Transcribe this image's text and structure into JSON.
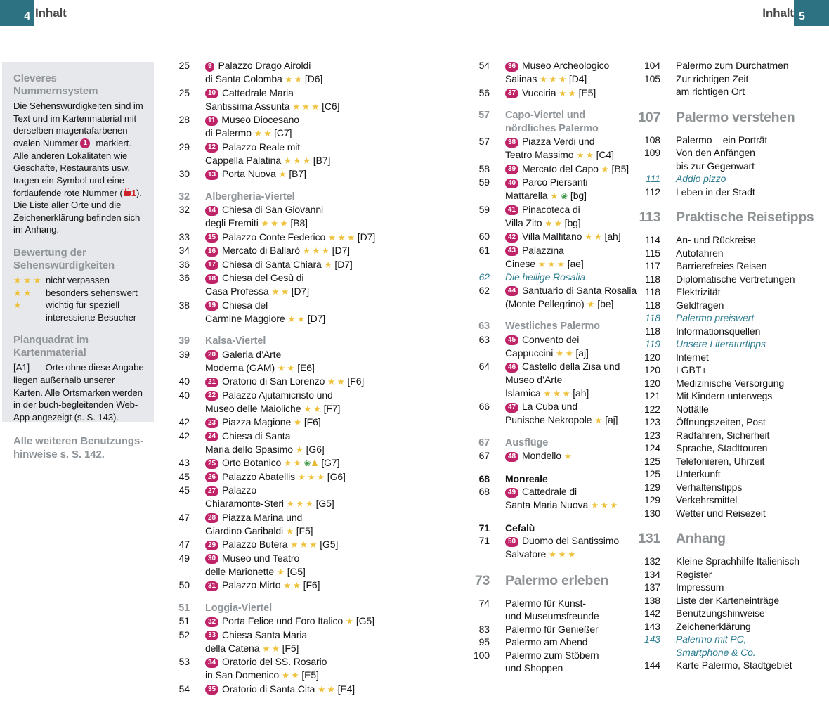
{
  "page": {
    "left_page_number": "4",
    "right_page_number": "5",
    "left_header": "Inhalt",
    "right_header": "Inhalt"
  },
  "colors": {
    "accent_teal": "#2c7282",
    "badge_magenta": "#bf2468",
    "star_yellow": "#eec23d",
    "heading_gray": "#8f9498",
    "essay_teal": "#2e7d91",
    "symbol_red": "#cc2328",
    "sidebar_bg": "#e7e8eb"
  },
  "sidebar": {
    "sections": [
      {
        "type": "text",
        "heading": "Cleveres Nummernsystem",
        "body": "Die Sehenswürdigkeiten sind im Text und im Kartenmaterial mit derselben magentafarbenen ovalen Nummer {badge:1} markiert. Alle anderen Lokalitäten wie Geschäfte, Restaurants usw. tragen ein Symbol und eine fortlaufende rote Nummer ({bag}{red:1}). Die Liste aller Orte und die Zeichenerklärung befinden sich im Anhang."
      },
      {
        "type": "ratings",
        "heading_lines": [
          "Bewertung der",
          "Sehenswürdigkeiten"
        ],
        "items": [
          {
            "stars": 3,
            "label": "nicht verpassen"
          },
          {
            "stars": 2,
            "label": "besonders sehenswert"
          },
          {
            "stars": 1,
            "label": "wichtig für speziell interessierte Besucher"
          }
        ]
      },
      {
        "type": "text",
        "heading": "Planquadrat im Kartenmaterial",
        "body": "{code:[A1]} Orte ohne diese Angabe liegen außerhalb unserer Karten. Alle Ortsmarken werden in der buch-begleitenden Web-App angezeigt (s. S. 143)."
      },
      {
        "type": "note",
        "lines": [
          "Alle weiteren Benutzungs-",
          "hinweise s. S. 142."
        ]
      }
    ]
  },
  "columns": [
    {
      "items": [
        {
          "page": "25",
          "badge": "9",
          "style": "entry",
          "lines": [
            "Palazzo Drago Airoldi",
            "di Santa Colomba ** [D6]"
          ]
        },
        {
          "page": "25",
          "badge": "10",
          "style": "entry",
          "lines": [
            "Cattedrale Maria",
            "Santissima Assunta *** [C6]"
          ]
        },
        {
          "page": "28",
          "badge": "11",
          "style": "entry",
          "lines": [
            "Museo Diocesano",
            "di Palermo ** [C7]"
          ]
        },
        {
          "page": "29",
          "badge": "12",
          "style": "entry",
          "lines": [
            "Palazzo Reale mit",
            "Cappella Palatina *** [B7]"
          ]
        },
        {
          "page": "30",
          "badge": "13",
          "style": "entry",
          "lines": [
            "Porta Nuova * [B7]"
          ]
        },
        {
          "page": "32",
          "style": "section",
          "lines": [
            "Albergheria-Viertel"
          ]
        },
        {
          "page": "32",
          "badge": "14",
          "style": "entry",
          "lines": [
            "Chiesa di San Giovanni",
            "degli Eremiti *** [B8]"
          ]
        },
        {
          "page": "33",
          "badge": "15",
          "style": "entry",
          "lines": [
            "Palazzo Conte Federico *** [D7]"
          ]
        },
        {
          "page": "34",
          "badge": "16",
          "style": "entry",
          "lines": [
            "Mercato di Ballarò *** [D7]"
          ]
        },
        {
          "page": "36",
          "badge": "17",
          "style": "entry",
          "lines": [
            "Chiesa di Santa Chiara * [D7]"
          ]
        },
        {
          "page": "36",
          "badge": "18",
          "style": "entry",
          "lines": [
            "Chiesa del Gesù di",
            "Casa Professa ** [D7]"
          ]
        },
        {
          "page": "38",
          "badge": "19",
          "style": "entry",
          "lines": [
            "Chiesa del",
            "Carmine Maggiore ** [D7]"
          ]
        },
        {
          "page": "39",
          "style": "section",
          "lines": [
            "Kalsa-Viertel"
          ]
        },
        {
          "page": "39",
          "badge": "20",
          "style": "entry",
          "lines": [
            "Galeria d’Arte",
            "Moderna (GAM) ** [E6]"
          ]
        },
        {
          "page": "40",
          "badge": "21",
          "style": "entry",
          "lines": [
            "Oratorio di San Lorenzo ** [F6]"
          ]
        },
        {
          "page": "40",
          "badge": "22",
          "style": "entry",
          "lines": [
            "Palazzo Ajutamicristo und",
            "Museo delle Maioliche ** [F7]"
          ]
        },
        {
          "page": "42",
          "badge": "23",
          "style": "entry",
          "lines": [
            "Piazza Magione * [F6]"
          ]
        },
        {
          "page": "42",
          "badge": "24",
          "style": "entry",
          "lines": [
            "Chiesa di Santa",
            "Maria dello Spasimo * [G6]"
          ]
        },
        {
          "page": "43",
          "badge": "25",
          "style": "entry",
          "lines": [
            "Orto Botanico ** {b}{p} [G7]"
          ]
        },
        {
          "page": "45",
          "badge": "26",
          "style": "entry",
          "lines": [
            "Palazzo Abatellis *** [G6]"
          ]
        },
        {
          "page": "45",
          "badge": "27",
          "style": "entry",
          "lines": [
            "Palazzo",
            "Chiaramonte-Steri *** [G5]"
          ]
        },
        {
          "page": "47",
          "badge": "28",
          "style": "entry",
          "lines": [
            "Piazza Marina und",
            "Giardino Garibaldi * [F5]"
          ]
        },
        {
          "page": "47",
          "badge": "29",
          "style": "entry",
          "lines": [
            "Palazzo Butera *** [G5]"
          ]
        },
        {
          "page": "49",
          "badge": "30",
          "style": "entry",
          "lines": [
            "Museo und Teatro",
            "delle Marionette * [G5]"
          ]
        },
        {
          "page": "50",
          "badge": "31",
          "style": "entry",
          "lines": [
            "Palazzo Mirto ** [F6]"
          ]
        },
        {
          "page": "51",
          "style": "section",
          "lines": [
            "Loggia-Viertel"
          ]
        },
        {
          "page": "51",
          "badge": "32",
          "style": "entry",
          "lines": [
            "Porta Felice und Foro Italico * [G5]"
          ]
        },
        {
          "page": "52",
          "badge": "33",
          "style": "entry",
          "lines": [
            "Chiesa Santa Maria",
            "della Catena ** [F5]"
          ]
        },
        {
          "page": "53",
          "badge": "34",
          "style": "entry",
          "lines": [
            "Oratorio del SS. Rosario",
            "in San Domenico ** [E5]"
          ]
        },
        {
          "page": "54",
          "badge": "35",
          "style": "entry",
          "lines": [
            "Oratorio di Santa Cita ** [E4]"
          ]
        }
      ]
    },
    {
      "items": [
        {
          "page": "54",
          "badge": "36",
          "style": "entry",
          "lines": [
            "Museo Archeologico",
            "Salinas *** [D4]"
          ]
        },
        {
          "page": "56",
          "badge": "37",
          "style": "entry",
          "lines": [
            "Vucciria ** [E5]"
          ]
        },
        {
          "page": "57",
          "style": "section",
          "lines": [
            "Capo-Viertel und",
            "nördliches Palermo"
          ]
        },
        {
          "page": "57",
          "badge": "38",
          "style": "entry",
          "lines": [
            "Piazza Verdi und",
            "Teatro Massimo ** [C4]"
          ]
        },
        {
          "page": "58",
          "badge": "39",
          "style": "entry",
          "lines": [
            "Mercato del Capo * [B5]"
          ]
        },
        {
          "page": "59",
          "badge": "40",
          "style": "entry",
          "lines": [
            "Parco Piersanti",
            "Mattarella * {b} [bg]"
          ]
        },
        {
          "page": "59",
          "badge": "41",
          "style": "entry",
          "lines": [
            "Pinacoteca di",
            "Villa Zito ** [bg]"
          ]
        },
        {
          "page": "60",
          "badge": "42",
          "style": "entry",
          "lines": [
            "Villa Malfitano ** [ah]"
          ]
        },
        {
          "page": "61",
          "badge": "43",
          "style": "entry",
          "lines": [
            "Palazzina",
            "Cinese *** [ae]"
          ]
        },
        {
          "page": "62",
          "style": "italic",
          "lines": [
            "Die heilige Rosalia"
          ]
        },
        {
          "page": "62",
          "badge": "44",
          "style": "entry",
          "lines": [
            "Santuario di Santa Rosalia",
            "(Monte Pellegrino) * [be]"
          ]
        },
        {
          "page": "63",
          "style": "section",
          "lines": [
            "Westliches Palermo"
          ]
        },
        {
          "page": "63",
          "badge": "45",
          "style": "entry",
          "lines": [
            "Convento dei",
            "Cappuccini ** [aj]"
          ]
        },
        {
          "page": "64",
          "badge": "46",
          "style": "entry",
          "lines": [
            "Castello della Zisa und",
            "Museo d’Arte",
            "Islamica *** [ah]"
          ]
        },
        {
          "page": "66",
          "badge": "47",
          "style": "entry",
          "lines": [
            "La Cuba und",
            "Punische Nekropole * [aj]"
          ]
        },
        {
          "page": "67",
          "style": "section",
          "lines": [
            "Ausflüge"
          ]
        },
        {
          "page": "67",
          "badge": "48",
          "style": "entry",
          "lines": [
            "Mondello *"
          ]
        },
        {
          "page": "68",
          "style": "bold",
          "lines": [
            "Monreale"
          ]
        },
        {
          "page": "68",
          "badge": "49",
          "style": "entry",
          "lines": [
            "Cattedrale di",
            "Santa Maria Nuova ***"
          ]
        },
        {
          "page": "71",
          "style": "bold",
          "lines": [
            "Cefalù"
          ]
        },
        {
          "page": "71",
          "badge": "50",
          "style": "entry",
          "lines": [
            "Duomo del Santissimo",
            "Salvatore ***"
          ]
        },
        {
          "page": "73",
          "style": "chapter",
          "lines": [
            "Palermo erleben"
          ]
        },
        {
          "page": "74",
          "style": "entry",
          "lines": [
            "Palermo für Kunst-",
            "und Museumsfreunde"
          ]
        },
        {
          "page": "83",
          "style": "entry",
          "lines": [
            "Palermo für Genießer"
          ]
        },
        {
          "page": "95",
          "style": "entry",
          "lines": [
            "Palermo am Abend"
          ]
        },
        {
          "page": "100",
          "style": "entry",
          "lines": [
            "Palermo zum Stöbern",
            "und Shoppen"
          ]
        }
      ]
    },
    {
      "items": [
        {
          "page": "104",
          "style": "entry",
          "lines": [
            "Palermo zum Durchatmen"
          ]
        },
        {
          "page": "105",
          "style": "entry",
          "lines": [
            "Zur richtigen Zeit",
            "am richtigen Ort"
          ]
        },
        {
          "page": "107",
          "style": "chapter",
          "lines": [
            "Palermo verstehen"
          ]
        },
        {
          "page": "108",
          "style": "entry",
          "lines": [
            "Palermo – ein Porträt"
          ]
        },
        {
          "page": "109",
          "style": "entry",
          "lines": [
            "Von den Anfängen",
            "bis zur Gegenwart"
          ]
        },
        {
          "page": "111",
          "style": "italic",
          "lines": [
            "Addio pizzo"
          ]
        },
        {
          "page": "112",
          "style": "entry",
          "lines": [
            "Leben in der Stadt"
          ]
        },
        {
          "page": "113",
          "style": "chapter",
          "lines": [
            "Praktische Reisetipps"
          ]
        },
        {
          "page": "114",
          "style": "entry",
          "lines": [
            "An- und Rückreise"
          ]
        },
        {
          "page": "115",
          "style": "entry",
          "lines": [
            "Autofahren"
          ]
        },
        {
          "page": "117",
          "style": "entry",
          "lines": [
            "Barrierefreies Reisen"
          ]
        },
        {
          "page": "118",
          "style": "entry",
          "lines": [
            "Diplomatische Vertretungen"
          ]
        },
        {
          "page": "118",
          "style": "entry",
          "lines": [
            "Elektrizität"
          ]
        },
        {
          "page": "118",
          "style": "entry",
          "lines": [
            "Geldfragen"
          ]
        },
        {
          "page": "118",
          "style": "italic",
          "lines": [
            "Palermo preiswert"
          ]
        },
        {
          "page": "118",
          "style": "entry",
          "lines": [
            "Informationsquellen"
          ]
        },
        {
          "page": "119",
          "style": "italic",
          "lines": [
            "Unsere Literaturtipps"
          ]
        },
        {
          "page": "120",
          "style": "entry",
          "lines": [
            "Internet"
          ]
        },
        {
          "page": "120",
          "style": "entry",
          "lines": [
            "LGBT+"
          ]
        },
        {
          "page": "120",
          "style": "entry",
          "lines": [
            "Medizinische Versorgung"
          ]
        },
        {
          "page": "121",
          "style": "entry",
          "lines": [
            "Mit Kindern unterwegs"
          ]
        },
        {
          "page": "122",
          "style": "entry",
          "lines": [
            "Notfälle"
          ]
        },
        {
          "page": "123",
          "style": "entry",
          "lines": [
            "Öffnungszeiten, Post"
          ]
        },
        {
          "page": "123",
          "style": "entry",
          "lines": [
            "Radfahren, Sicherheit"
          ]
        },
        {
          "page": "124",
          "style": "entry",
          "lines": [
            "Sprache, Stadttouren"
          ]
        },
        {
          "page": "125",
          "style": "entry",
          "lines": [
            "Telefonieren, Uhrzeit"
          ]
        },
        {
          "page": "125",
          "style": "entry",
          "lines": [
            "Unterkunft"
          ]
        },
        {
          "page": "129",
          "style": "entry",
          "lines": [
            "Verhaltenstipps"
          ]
        },
        {
          "page": "129",
          "style": "entry",
          "lines": [
            "Verkehrsmittel"
          ]
        },
        {
          "page": "130",
          "style": "entry",
          "lines": [
            "Wetter und Reisezeit"
          ]
        },
        {
          "page": "131",
          "style": "chapter",
          "lines": [
            "Anhang"
          ]
        },
        {
          "page": "132",
          "style": "entry",
          "lines": [
            "Kleine Sprachhilfe Italienisch"
          ]
        },
        {
          "page": "134",
          "style": "entry",
          "lines": [
            "Register"
          ]
        },
        {
          "page": "137",
          "style": "entry",
          "lines": [
            "Impressum"
          ]
        },
        {
          "page": "138",
          "style": "entry",
          "lines": [
            "Liste der Karteneinträge"
          ]
        },
        {
          "page": "142",
          "style": "entry",
          "lines": [
            "Benutzungshinweise"
          ]
        },
        {
          "page": "143",
          "style": "entry",
          "lines": [
            "Zeichenerklärung"
          ]
        },
        {
          "page": "143",
          "style": "italic",
          "lines": [
            "Palermo mit PC,",
            "Smartphone & Co."
          ]
        },
        {
          "page": "144",
          "style": "entry",
          "lines": [
            "Karte Palermo, Stadtgebiet"
          ]
        }
      ]
    }
  ]
}
